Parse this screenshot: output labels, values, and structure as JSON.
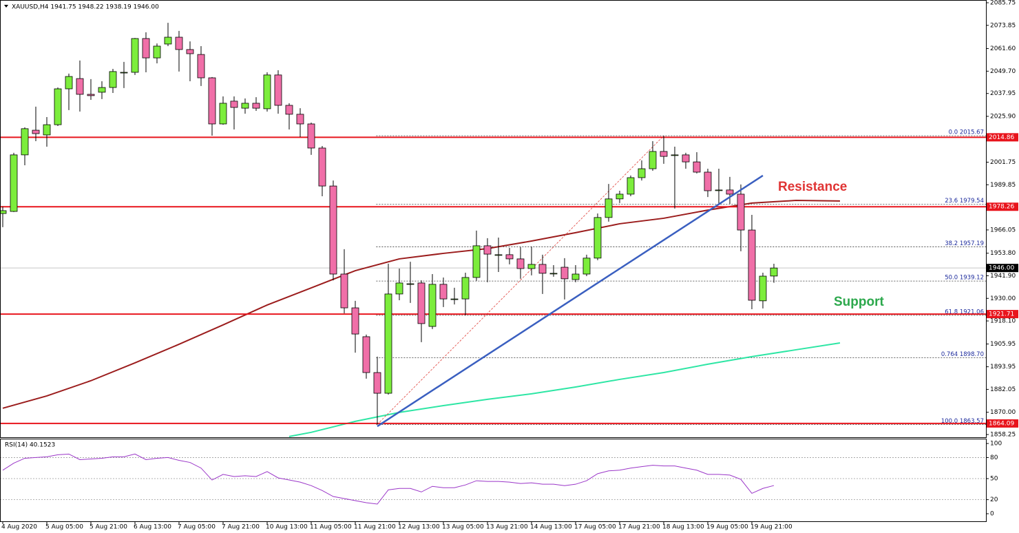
{
  "chart_data": {
    "type": "candlestick",
    "title": "XAUUSD,H4  1941.75 1948.22 1938.19 1946.00",
    "categories": [
      "4 Aug 2020",
      null,
      null,
      null,
      "5 Aug 05:00",
      null,
      null,
      null,
      "5 Aug 21:00",
      null,
      null,
      null,
      "6 Aug 13:00",
      null,
      null,
      null,
      "7 Aug 05:00",
      null,
      null,
      null,
      "7 Aug 21:00",
      null,
      null,
      null,
      "10 Aug 13:00",
      null,
      null,
      null,
      "11 Aug 05:00",
      null,
      null,
      null,
      "11 Aug 21:00",
      null,
      null,
      null,
      "12 Aug 13:00",
      null,
      null,
      null,
      "13 Aug 05:00",
      null,
      null,
      null,
      "13 Aug 21:00",
      null,
      null,
      null,
      "14 Aug 13:00",
      null,
      null,
      null,
      "17 Aug 05:00",
      null,
      null,
      null,
      "17 Aug 21:00",
      null,
      null,
      null,
      "18 Aug 13:00",
      null,
      null,
      null,
      "19 Aug 05:00",
      null,
      null,
      null,
      "19 Aug 21:00",
      null,
      null
    ],
    "open": [
      1974.7,
      1975.8,
      2005.6,
      2018.6,
      2016.1,
      2021.5,
      2040.4,
      2045.8,
      2037.5,
      2038.6,
      2041.1,
      2049.1,
      2049.1,
      2066.9,
      2056.7,
      2064.0,
      2067.6,
      2061.1,
      2058.5,
      2046.2,
      2021.9,
      2033.9,
      2030.2,
      2032.8,
      2029.9,
      2047.7,
      2031.7,
      2027.0,
      2021.9,
      2009.2,
      1989.2,
      1942.8,
      1925.0,
      1909.8,
      1890.9,
      1880.0,
      1932.3,
      1937.7,
      1938.1,
      1915.2,
      1937.4,
      1929.7,
      1929.7,
      1941.0,
      1957.7,
      1953.0,
      1953.0,
      1950.8,
      1945.7,
      1947.9,
      1943.2,
      1946.4,
      1939.9,
      1942.8,
      1951.2,
      1972.6,
      1982.4,
      1984.9,
      1993.6,
      1998.3,
      2007.4,
      2005.6,
      2005.6,
      2001.9,
      1996.5,
      1987.1,
      1987.1,
      1984.9,
      1966.0,
      1928.7,
      1941.75
    ],
    "high": [
      1978.4,
      2006.7,
      2020.1,
      2031.0,
      2025.5,
      2041.1,
      2048.4,
      2055.3,
      2045.5,
      2044.4,
      2050.9,
      2054.6,
      2067.2,
      2070.2,
      2064.3,
      2075.2,
      2070.9,
      2065.4,
      2062.9,
      2046.6,
      2036.4,
      2036.4,
      2035.3,
      2036.0,
      2049.1,
      2050.2,
      2032.8,
      2030.2,
      2022.6,
      2010.3,
      1992.1,
      1955.9,
      1928.7,
      1910.9,
      1899.3,
      1948.3,
      1945.7,
      1949.3,
      1939.5,
      1942.8,
      1941.0,
      1935.6,
      1943.5,
      1965.7,
      1961.7,
      1962.0,
      1956.6,
      1957.0,
      1957.3,
      1953.0,
      1947.5,
      1951.2,
      1947.5,
      1953.0,
      1974.7,
      1990.3,
      1986.7,
      1994.7,
      2002.7,
      2012.8,
      2015.67,
      2009.9,
      2006.7,
      2007.0,
      1998.3,
      1998.3,
      1994.0,
      1990.0,
      1974.0,
      1943.5,
      1948.22
    ],
    "low": [
      1967.5,
      1975.5,
      2000.1,
      2012.8,
      2009.9,
      2020.8,
      2029.2,
      2028.4,
      2034.6,
      2035.0,
      2038.2,
      2040.8,
      2047.7,
      2049.1,
      2053.8,
      2062.9,
      2049.5,
      2044.4,
      2041.9,
      2015.7,
      2021.5,
      2019.0,
      2027.3,
      2028.8,
      2028.4,
      2027.3,
      2019.0,
      2015.0,
      2005.6,
      1983.8,
      1939.5,
      1922.1,
      1901.4,
      1887.7,
      1863.57,
      1879.3,
      1929.0,
      1927.6,
      1906.9,
      1913.8,
      1925.4,
      1926.8,
      1921.0,
      1939.2,
      1938.5,
      1943.9,
      1947.9,
      1940.3,
      1942.1,
      1932.3,
      1941.4,
      1929.4,
      1938.5,
      1941.7,
      1950.1,
      1970.4,
      1980.2,
      1983.8,
      1992.1,
      1997.2,
      2000.9,
      1977.3,
      1998.3,
      1995.8,
      1983.4,
      1979.1,
      1979.8,
      1954.8,
      1924.3,
      1924.7,
      1938.19
    ],
    "close": [
      1976.2,
      2005.6,
      2019.4,
      2016.8,
      2021.5,
      2040.4,
      2046.9,
      2037.5,
      2036.8,
      2041.1,
      2049.5,
      2049.1,
      2066.9,
      2056.7,
      2062.9,
      2067.6,
      2061.1,
      2058.9,
      2046.2,
      2021.9,
      2032.8,
      2030.6,
      2032.8,
      2030.2,
      2047.7,
      2031.7,
      2027.0,
      2021.9,
      2009.2,
      1989.2,
      1942.8,
      1925.0,
      1911.2,
      1890.9,
      1880.0,
      1932.3,
      1938.1,
      1937.7,
      1916.7,
      1937.4,
      1929.7,
      1929.7,
      1941.0,
      1957.7,
      1953.3,
      1953.0,
      1950.8,
      1945.7,
      1947.9,
      1943.2,
      1943.2,
      1940.3,
      1942.8,
      1951.2,
      1972.6,
      1982.4,
      1984.9,
      1993.6,
      1998.3,
      2007.4,
      2004.8,
      2005.6,
      2001.9,
      1996.5,
      1986.7,
      1987.1,
      1984.9,
      1966.0,
      1929.0,
      1941.7,
      1946
    ],
    "up_color": "#7ced3c",
    "down_color": "#f06fa8",
    "ylim": [
      1856.8,
      2087.2
    ],
    "yticks": [
      2085.75,
      2073.85,
      {
        "value": 2061.6,
        "label": "2061.60"
      },
      {
        "value": 2049.7,
        "label": "2049.70"
      },
      2037.95,
      {
        "value": 2025.9,
        "label": "2025.90"
      },
      2001.75,
      1989.85,
      1966.05,
      {
        "value": 1953.8,
        "label": "1953.80"
      },
      {
        "value": 1941.9,
        "label": "1941.90"
      },
      {
        "value": 1930,
        "label": "1930.00"
      },
      {
        "value": 1918.1,
        "label": "1918.10"
      },
      1905.95,
      1893.95,
      1882.05,
      {
        "value": 1870,
        "label": "1870.00"
      },
      1858.25
    ],
    "levels": {
      "values": [
        2014.86,
        1978.26,
        1921.71,
        1864.09
      ],
      "color": "#e8141c"
    },
    "last_price": {
      "value": 1946,
      "label": "1946.00"
    },
    "fibonacci": {
      "labels": [
        "0.0 2015.67",
        "23.6 1979.54",
        "38.2 1957.19",
        "50.0 1939.12",
        "61.8 1921.06",
        "0.764 1898.70",
        "100.0 1863.57"
      ],
      "values": [
        2015.67,
        1979.54,
        1957.19,
        1939.12,
        1921.06,
        1898.7,
        1863.57
      ],
      "color": "#1c2a9c"
    },
    "fib_line": {
      "x": [
        34,
        60
      ],
      "values": [
        1863.57,
        2015.67
      ],
      "color": "#e0403a"
    },
    "trendline": {
      "x": [
        34,
        69
      ],
      "values": [
        1862.6,
        1994.7
      ],
      "color": "#3a5fc0"
    },
    "moving_averages": [
      {
        "color": "#9b1c1c",
        "x": [
          0,
          4,
          8,
          12,
          16,
          20,
          24,
          28,
          32,
          36,
          40,
          44,
          48,
          52,
          56,
          60,
          64,
          68,
          72,
          76
        ],
        "values": [
          1872.1,
          1878.6,
          1886.6,
          1896.0,
          1905.8,
          1916.0,
          1926.5,
          1935.5,
          1944.6,
          1950.8,
          1953.7,
          1956.2,
          1960.2,
          1964.6,
          1969.3,
          1972.2,
          1976.5,
          1980.2,
          1981.6,
          1981.3
        ]
      },
      {
        "color": "#2de6a4",
        "x": [
          26,
          28,
          32,
          36,
          40,
          44,
          48,
          52,
          56,
          60,
          64,
          68,
          72,
          76
        ],
        "values": [
          1857.2,
          1859.4,
          1865.2,
          1869.9,
          1873.5,
          1876.8,
          1879.7,
          1883.3,
          1887.3,
          1890.9,
          1895.3,
          1899.3,
          1902.9,
          1906.5
        ]
      }
    ],
    "annotations": [
      {
        "text": "Resistance",
        "color": "#e03434"
      },
      {
        "text": "Support",
        "color": "#2ca84c"
      }
    ],
    "rsi": {
      "title": "RSI(14) 40.1523",
      "color": "#9a35c8",
      "ylim": [
        -10.8,
        106.9
      ],
      "yticks": [
        100,
        80,
        50,
        20,
        0
      ],
      "levels": [
        80,
        50,
        20
      ],
      "values": [
        62,
        72,
        79,
        80,
        81,
        84,
        85,
        77,
        78,
        79,
        81,
        81,
        85,
        77,
        79,
        80,
        76,
        73,
        65,
        48,
        56,
        53,
        54,
        53,
        60,
        51,
        48,
        45,
        40,
        33,
        24.5,
        21.6,
        18.6,
        15.7,
        13.7,
        34,
        36,
        36,
        31,
        39,
        37,
        37,
        41,
        47,
        46,
        46,
        45,
        43,
        44,
        42,
        42,
        40,
        42,
        47,
        57,
        61,
        62,
        65,
        67,
        69,
        68,
        68,
        65,
        62,
        56,
        56,
        55,
        49,
        29,
        36,
        40.15
      ]
    }
  }
}
